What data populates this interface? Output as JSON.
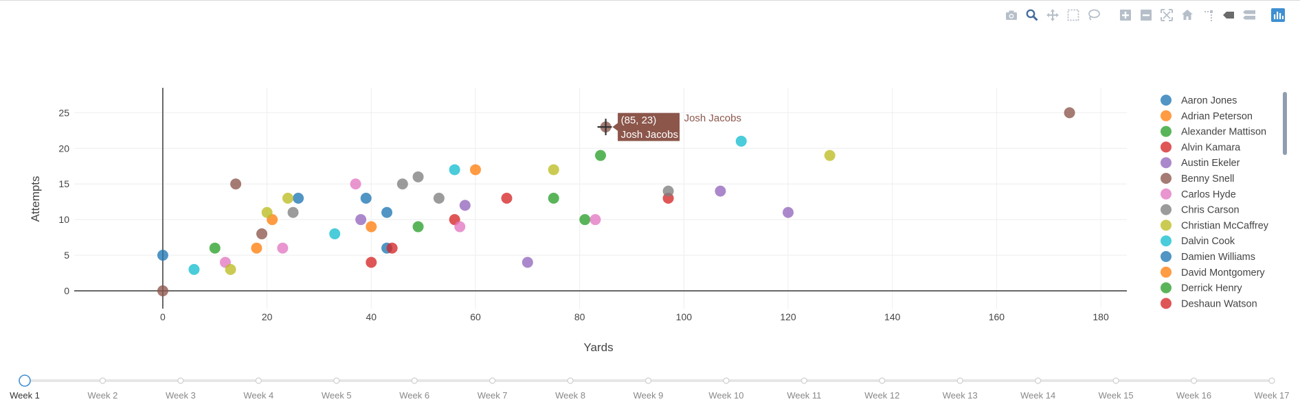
{
  "chart_data": {
    "type": "scatter",
    "xlabel": "Yards",
    "ylabel": "Attempts",
    "xlim": [
      -17,
      185
    ],
    "ylim": [
      -2.5,
      28.5
    ],
    "xticks": [
      0,
      20,
      40,
      60,
      80,
      100,
      120,
      140,
      160,
      180
    ],
    "yticks": [
      0,
      5,
      10,
      15,
      20,
      25
    ],
    "grid": true,
    "legend_position": "right",
    "series": [
      {
        "name": "Aaron Jones",
        "color": "#1f77b4",
        "points": [
          [
            26,
            13
          ],
          [
            39,
            13
          ],
          [
            43,
            11
          ],
          [
            43,
            6
          ],
          [
            0,
            5
          ]
        ]
      },
      {
        "name": "Adrian Peterson",
        "color": "#ff7f0e",
        "points": [
          [
            21,
            10
          ],
          [
            18,
            6
          ],
          [
            40,
            9
          ],
          [
            60,
            17
          ]
        ]
      },
      {
        "name": "Alexander Mattison",
        "color": "#2ca02c",
        "points": [
          [
            10,
            6
          ],
          [
            49,
            9
          ],
          [
            75,
            13
          ],
          [
            84,
            19
          ],
          [
            81,
            10
          ]
        ]
      },
      {
        "name": "Alvin Kamara",
        "color": "#d62728",
        "points": [
          [
            44,
            6
          ],
          [
            40,
            4
          ],
          [
            56,
            10
          ],
          [
            66,
            13
          ],
          [
            97,
            13
          ]
        ]
      },
      {
        "name": "Austin Ekeler",
        "color": "#9467bd",
        "points": [
          [
            38,
            10
          ],
          [
            58,
            12
          ],
          [
            70,
            4
          ],
          [
            107,
            14
          ],
          [
            120,
            11
          ]
        ]
      },
      {
        "name": "Benny Snell",
        "color": "#8c564b",
        "points": [
          [
            14,
            15
          ],
          [
            19,
            8
          ],
          [
            0,
            0
          ],
          [
            174,
            25
          ]
        ]
      },
      {
        "name": "Carlos Hyde",
        "color": "#e377c2",
        "points": [
          [
            12,
            4
          ],
          [
            23,
            6
          ],
          [
            37,
            15
          ],
          [
            57,
            9
          ],
          [
            83,
            10
          ]
        ]
      },
      {
        "name": "Chris Carson",
        "color": "#7f7f7f",
        "points": [
          [
            25,
            11
          ],
          [
            46,
            15
          ],
          [
            49,
            16
          ],
          [
            53,
            13
          ],
          [
            97,
            14
          ]
        ]
      },
      {
        "name": "Christian McCaffrey",
        "color": "#bcbd22",
        "points": [
          [
            13,
            3
          ],
          [
            20,
            11
          ],
          [
            24,
            13
          ],
          [
            75,
            17
          ],
          [
            128,
            19
          ]
        ]
      },
      {
        "name": "Dalvin Cook",
        "color": "#17becf",
        "points": [
          [
            6,
            3
          ],
          [
            33,
            8
          ],
          [
            56,
            17
          ],
          [
            111,
            21
          ]
        ]
      },
      {
        "name": "Damien Williams",
        "color": "#1f77b4",
        "points": []
      },
      {
        "name": "David Montgomery",
        "color": "#ff7f0e",
        "points": []
      },
      {
        "name": "Derrick Henry",
        "color": "#2ca02c",
        "points": []
      },
      {
        "name": "Deshaun Watson",
        "color": "#d62728",
        "points": []
      },
      {
        "name": "Josh Jacobs",
        "color": "#8c564b",
        "points": [
          [
            85,
            23
          ]
        ]
      }
    ],
    "legend_visible": [
      "Aaron Jones",
      "Adrian Peterson",
      "Alexander Mattison",
      "Alvin Kamara",
      "Austin Ekeler",
      "Benny Snell",
      "Carlos Hyde",
      "Chris Carson",
      "Christian McCaffrey",
      "Dalvin Cook",
      "Damien Williams",
      "David Montgomery",
      "Derrick Henry",
      "Deshaun Watson"
    ],
    "hover": {
      "x": 85,
      "y": 23,
      "coord_text": "(85, 23)",
      "name": "Josh Jacobs",
      "color": "#8c564b"
    }
  },
  "slider": {
    "steps": [
      "Week 1",
      "Week 2",
      "Week 3",
      "Week 4",
      "Week 5",
      "Week 6",
      "Week 7",
      "Week 8",
      "Week 9",
      "Week 10",
      "Week 11",
      "Week 12",
      "Week 13",
      "Week 14",
      "Week 15",
      "Week 16",
      "Week 17"
    ],
    "active": 0
  },
  "modebar": [
    "camera-icon",
    "zoom-icon",
    "pan-icon",
    "box-select-icon",
    "lasso-icon",
    "zoom-in-icon",
    "zoom-out-icon",
    "autoscale-icon",
    "reset-axes-icon",
    "spike-lines-icon",
    "hover-closest-icon",
    "hover-compare-icon",
    "plotly-logo-icon"
  ]
}
